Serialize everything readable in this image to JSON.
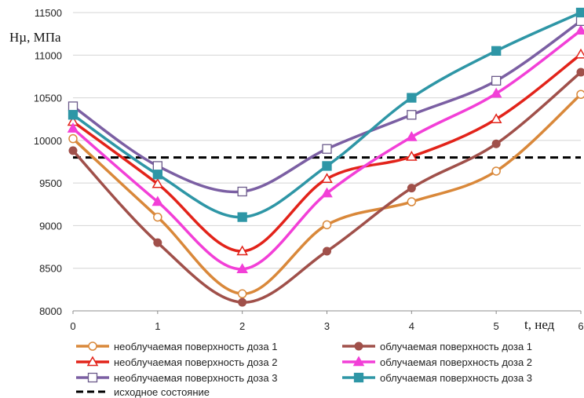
{
  "chart_data": {
    "type": "line",
    "title": "",
    "ylabel": "Hµ,  МПа",
    "xlabel": "t, нед",
    "x": [
      0,
      1,
      2,
      3,
      4,
      5,
      6
    ],
    "x_ticks": [
      "0",
      "1",
      "2",
      "3",
      "4",
      "5",
      "6"
    ],
    "y_ticks": [
      "8000",
      "8500",
      "9000",
      "9500",
      "10000",
      "10500",
      "11000",
      "11500"
    ],
    "xlim": [
      0,
      6
    ],
    "ylim": [
      8000,
      11500
    ],
    "grid": "horizontal",
    "legend_position": "bottom",
    "series": [
      {
        "name": "необлучаемая поверхность доза 1",
        "color": "#D9883A",
        "marker": "circle-open",
        "values": [
          10020,
          9100,
          8200,
          9010,
          9280,
          9640,
          10540
        ]
      },
      {
        "name": "облучаемая поверхность доза 1",
        "color": "#A0504A",
        "marker": "circle-filled",
        "values": [
          9880,
          8800,
          8100,
          8700,
          9440,
          9960,
          10800
        ]
      },
      {
        "name": "необлучаемая поверхность доза 2",
        "color": "#E2231A",
        "marker": "triangle-open",
        "values": [
          10220,
          9490,
          8700,
          9550,
          9810,
          10250,
          11010
        ]
      },
      {
        "name": "облучаемая поверхность доза 2",
        "color": "#F23FD7",
        "marker": "triangle-filled",
        "values": [
          10140,
          9280,
          8490,
          9380,
          10040,
          10550,
          11290
        ]
      },
      {
        "name": "необлучаемая поверхность доза 3",
        "color": "#7B5FA3",
        "marker": "square-open",
        "values": [
          10400,
          9700,
          9400,
          9900,
          10300,
          10700,
          11400
        ]
      },
      {
        "name": "облучаемая поверхность доза 3",
        "color": "#2E96A6",
        "marker": "square-filled",
        "values": [
          10300,
          9600,
          9100,
          9700,
          10500,
          11050,
          11500
        ]
      },
      {
        "name": "исходное состояние",
        "color": "#000000",
        "marker": "dashed-line",
        "values": [
          9800,
          9800,
          9800,
          9800,
          9800,
          9800,
          9800
        ]
      }
    ]
  }
}
